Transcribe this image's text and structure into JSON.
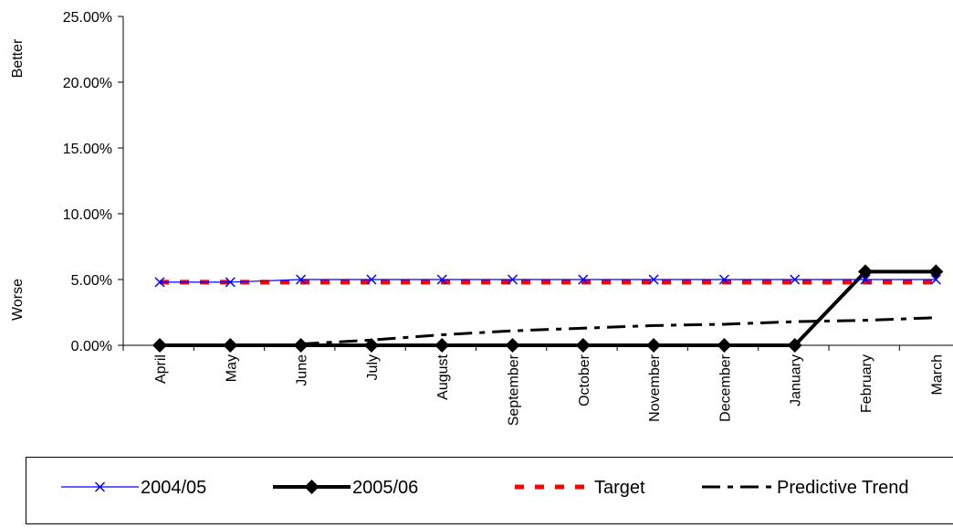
{
  "chart_data": {
    "type": "line",
    "categories": [
      "April",
      "May",
      "June",
      "July",
      "August",
      "September",
      "October",
      "November",
      "December",
      "January",
      "February",
      "March"
    ],
    "y_tick_labels": [
      "0.00%",
      "5.00%",
      "10.00%",
      "15.00%",
      "20.00%",
      "25.00%"
    ],
    "ylim": [
      0,
      25
    ],
    "side_labels": {
      "top": "Better",
      "bottom": "Worse"
    },
    "grid": false,
    "legend_position": "bottom",
    "series": [
      {
        "name": "2004/05",
        "color": "#0000ff",
        "style": "thin-solid",
        "marker": "x",
        "values": [
          4.8,
          4.8,
          5.0,
          5.0,
          5.0,
          5.0,
          5.0,
          5.0,
          5.0,
          5.0,
          5.0,
          5.0
        ]
      },
      {
        "name": "2005/06",
        "color": "#000000",
        "style": "thick-solid",
        "marker": "diamond",
        "values": [
          0,
          0,
          0,
          0,
          0,
          0,
          0,
          0,
          0,
          0,
          5.6,
          5.6
        ]
      },
      {
        "name": "Target",
        "color": "#ff0000",
        "style": "dash",
        "marker": "none",
        "values": [
          4.8,
          4.8,
          4.8,
          4.8,
          4.8,
          4.8,
          4.8,
          4.8,
          4.8,
          4.8,
          4.8,
          4.8
        ]
      },
      {
        "name": "Predictive Trend",
        "color": "#000000",
        "style": "dash-dot",
        "marker": "none",
        "values": [
          null,
          null,
          0.1,
          0.4,
          0.8,
          1.1,
          1.3,
          1.5,
          1.6,
          1.8,
          1.9,
          2.1
        ]
      }
    ]
  }
}
